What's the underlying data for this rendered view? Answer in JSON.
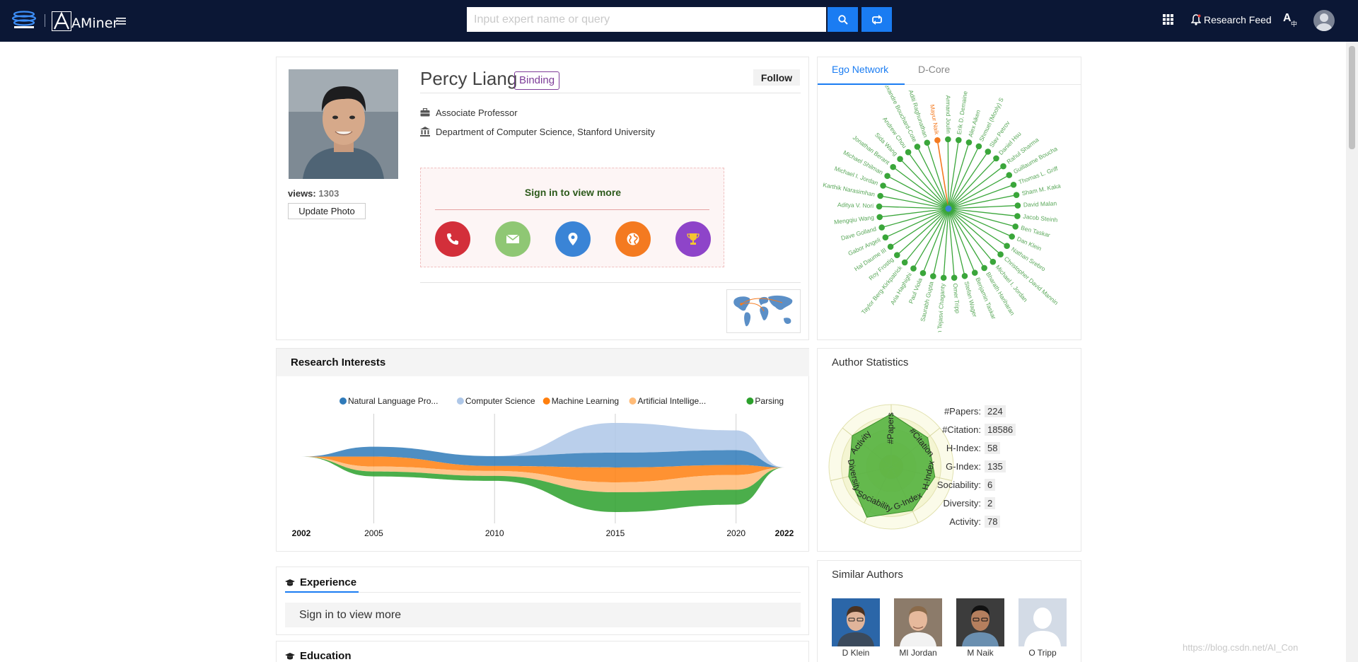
{
  "header": {
    "brand": "AMiner",
    "search_placeholder": "Input expert name or query",
    "research_feed": "Research Feed"
  },
  "profile": {
    "name": "Percy Liang",
    "binding": "Binding",
    "follow": "Follow",
    "views_label": "views:",
    "views_count": "1303",
    "update_photo": "Update Photo",
    "position": "Associate Professor",
    "affiliation": "Department of Computer Science, Stanford University",
    "signin_text": "Sign in to view more",
    "contact_icons": [
      {
        "name": "phone-icon",
        "color": "#d32f3a"
      },
      {
        "name": "email-icon",
        "color": "#8fc774"
      },
      {
        "name": "location-icon",
        "color": "#3a84d6"
      },
      {
        "name": "homepage-icon",
        "color": "#f47a20"
      },
      {
        "name": "award-icon",
        "color": "#8e44c9"
      }
    ]
  },
  "ego_network": {
    "tabs": [
      "Ego Network",
      "D-Core"
    ],
    "highlight_color": "#f47a20",
    "node_color": "#3aa63a",
    "nodes": [
      "Mayur Naik",
      "Armand Joulin",
      "Erik D. Demaine",
      "Alex Aiken",
      "Shmuel (Mooly) S",
      "Slav Petrov",
      "Daniel Hsu",
      "Rahul Sharma",
      "Guillaume Boucha",
      "Thomas L. Griff",
      "Sham M. Kaka",
      "David Malan",
      "Jacob Steinh",
      "Ben Taskar",
      "Dan Klein",
      "Nathan Srebro",
      "Christopher David Mannin",
      "Michael I. Jordan",
      "Bharath Hariharan",
      "Benjamin Taskar",
      "Stefan Wager",
      "Omer Tripp",
      "Arun Tejasvi Chaganty",
      "Saurabh Gupta",
      "Paul Viola",
      "Aria Haghighi",
      "Taylor Berg-Kirkpatrick",
      "Roy Frostig",
      "Hal Daume III",
      "Gabor Angeli",
      "Dave Golland",
      "Mengqiu Wang",
      "Aditya V. Nori",
      "Karthik Narasimhan",
      "Michael I. Jordan",
      "Michael Shilman",
      "Jonathan Berant",
      "Sida Wang",
      "Andrew Chou",
      "Alexandre Bouchard-Cote",
      "Aditi Raghunathan"
    ]
  },
  "research_interests": {
    "title": "Research Interests",
    "chart_data": {
      "type": "area",
      "subtype": "streamgraph",
      "x": [
        2002,
        2005,
        2010,
        2015,
        2020,
        2022
      ],
      "x_ticks": [
        "2002",
        "2005",
        "2010",
        "2015",
        "2020",
        "2022"
      ],
      "series": [
        {
          "name": "Natural Language Pro...",
          "color": "#2f7ab9",
          "values": [
            0,
            2,
            2,
            3,
            3,
            0
          ]
        },
        {
          "name": "Computer Science",
          "color": "#aec7e8",
          "values": [
            0,
            0,
            0,
            6,
            4,
            0
          ]
        },
        {
          "name": "Machine Learning",
          "color": "#ff7f0e",
          "values": [
            0,
            2,
            1,
            3,
            2,
            0
          ]
        },
        {
          "name": "Artificial Intellige...",
          "color": "#ffbb78",
          "values": [
            0,
            1,
            1,
            2,
            3,
            0
          ]
        },
        {
          "name": "Parsing",
          "color": "#2ca02c",
          "values": [
            0,
            1,
            1,
            4,
            3,
            0
          ]
        }
      ]
    }
  },
  "author_statistics": {
    "title": "Author Statistics",
    "stats": [
      {
        "label": "#Papers:",
        "value": "224"
      },
      {
        "label": "#Citation:",
        "value": "18586"
      },
      {
        "label": "H-Index:",
        "value": "58"
      },
      {
        "label": "G-Index:",
        "value": "135"
      },
      {
        "label": "Sociability:",
        "value": "6"
      },
      {
        "label": "Diversity:",
        "value": "2"
      },
      {
        "label": "Activity:",
        "value": "78"
      }
    ],
    "radar": {
      "type": "radar",
      "axes": [
        "#Papers",
        "#Citation",
        "H-Index",
        "G-Index",
        "Sociability",
        "Diversity",
        "Activity"
      ],
      "values": [
        0.85,
        0.75,
        0.72,
        0.78,
        0.9,
        0.7,
        0.8
      ],
      "fill_color": "#4caf3a"
    }
  },
  "experience": {
    "title": "Experience",
    "content": "Sign in to view more"
  },
  "education": {
    "title": "Education"
  },
  "similar_authors": {
    "title": "Similar Authors",
    "authors": [
      {
        "name": "D Klein"
      },
      {
        "name": "MI Jordan"
      },
      {
        "name": "M Naik"
      },
      {
        "name": "O Tripp"
      }
    ]
  },
  "watermark": "https://blog.csdn.net/AI_Con"
}
